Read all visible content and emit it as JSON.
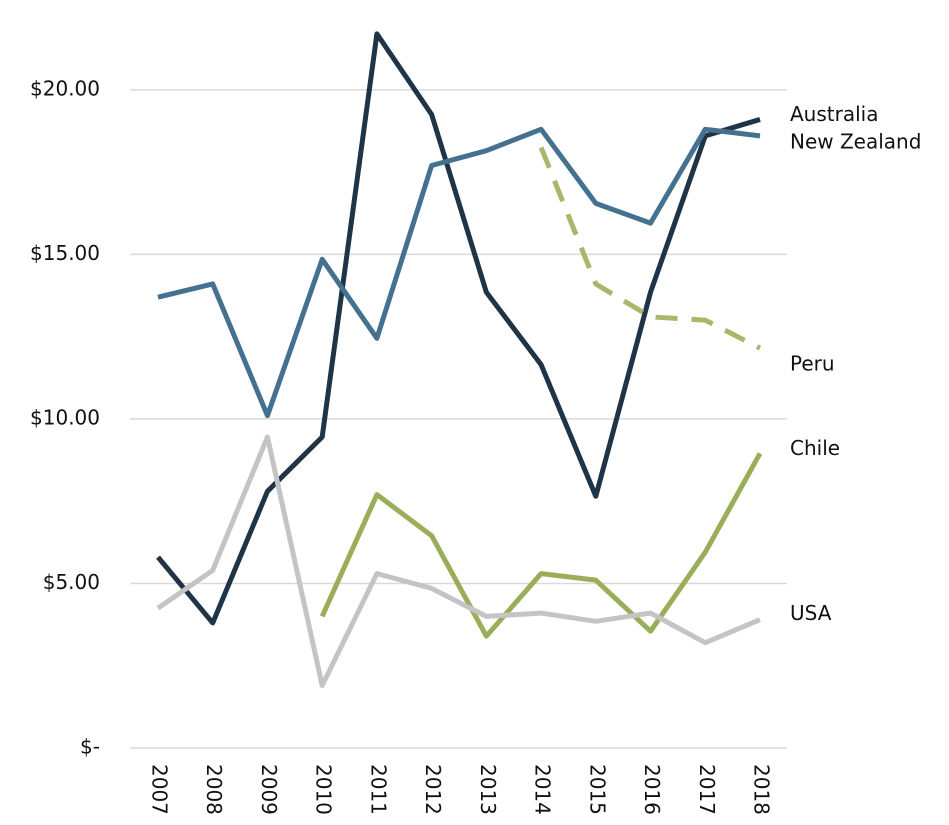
{
  "chart_data": {
    "type": "line",
    "categories": [
      "2007",
      "2008",
      "2009",
      "2010",
      "2011",
      "2012",
      "2013",
      "2014",
      "2015",
      "2016",
      "2017",
      "2018"
    ],
    "series": [
      {
        "name": "Australia",
        "color": "#1f3447",
        "values": [
          5.8,
          3.8,
          7.8,
          9.45,
          21.7,
          19.25,
          13.85,
          11.65,
          7.65,
          13.85,
          18.6,
          19.1
        ]
      },
      {
        "name": "New Zealand",
        "color": "#44718f",
        "values": [
          13.7,
          14.1,
          10.1,
          14.85,
          12.45,
          17.7,
          18.15,
          18.8,
          16.55,
          15.95,
          18.8,
          18.6
        ]
      },
      {
        "name": "Peru",
        "color": "#a6b96a",
        "dashed": true,
        "values": [
          null,
          null,
          null,
          null,
          null,
          null,
          null,
          18.25,
          14.1,
          13.1,
          13.0,
          12.15
        ]
      },
      {
        "name": "Chile",
        "color": "#9aae5a",
        "values": [
          null,
          null,
          null,
          4.0,
          7.7,
          6.45,
          3.4,
          5.3,
          5.1,
          3.55,
          5.95,
          8.95
        ]
      },
      {
        "name": "USA",
        "color": "#c4c4c4",
        "values": [
          4.25,
          5.4,
          9.45,
          1.9,
          5.3,
          4.85,
          4.0,
          4.1,
          3.85,
          4.1,
          3.2,
          3.9
        ]
      }
    ],
    "ylim": [
      0,
      22
    ],
    "yticks": [
      {
        "value": 0,
        "label": "$-"
      },
      {
        "value": 5,
        "label": "$5.00"
      },
      {
        "value": 10,
        "label": "$10.00"
      },
      {
        "value": 15,
        "label": "$15.00"
      },
      {
        "value": 20,
        "label": "$20.00"
      }
    ],
    "grid": true
  }
}
